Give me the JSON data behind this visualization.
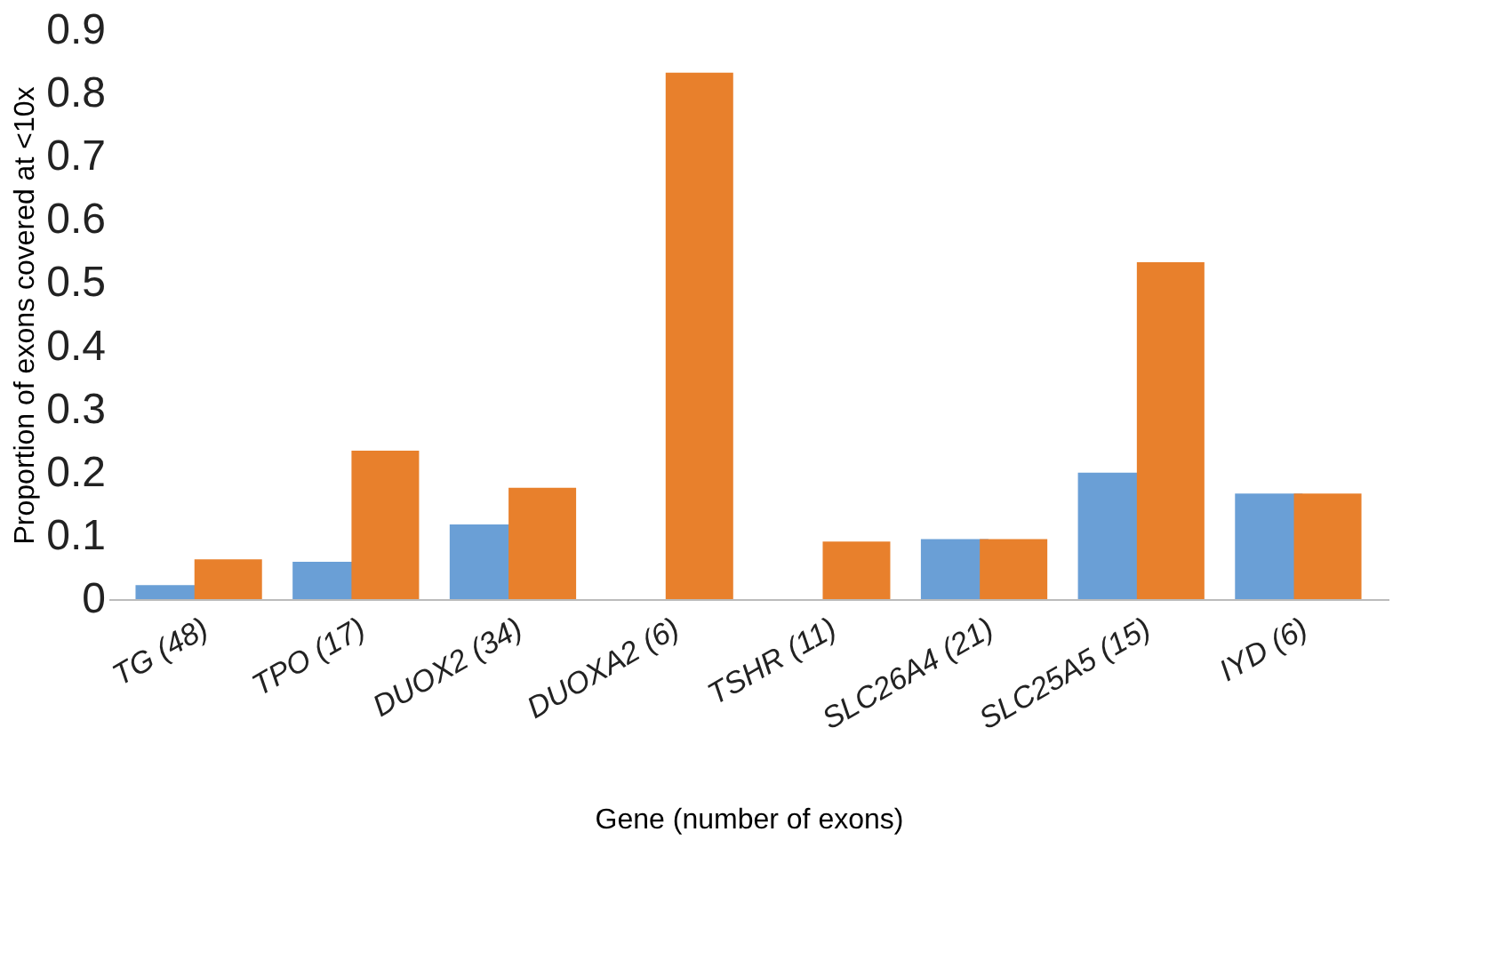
{
  "chart_data": {
    "type": "bar",
    "xlabel": "Gene (number of exons)",
    "ylabel": "Proportion of exons covered at <10x",
    "categories": [
      "TG (48)",
      "TPO (17)",
      "DUOX2 (34)",
      "DUOXA2 (6)",
      "TSHR (11)",
      "SLC26A4 (21)",
      "SLC25A5 (15)",
      "IYD (6)"
    ],
    "series": [
      {
        "color": "#6a9fd6",
        "values": [
          0.022,
          0.059,
          0.118,
          0,
          0,
          0.095,
          0.2,
          0.167
        ]
      },
      {
        "color": "#e8802c",
        "values": [
          0.063,
          0.235,
          0.176,
          0.833,
          0.091,
          0.095,
          0.533,
          0.167
        ]
      }
    ],
    "ylim": [
      0,
      0.9
    ],
    "yticks": [
      {
        "value": 0,
        "label": "0"
      },
      0.1,
      0.2,
      0.3,
      0.4,
      0.5,
      0.6,
      0.7,
      0.8,
      0.9
    ],
    "grid": false,
    "legend": false
  }
}
